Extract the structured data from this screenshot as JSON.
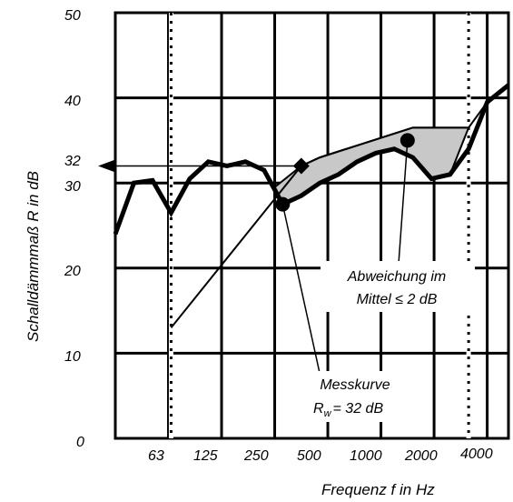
{
  "chart_data": {
    "type": "line",
    "xlabel": "Frequenz f in Hz",
    "ylabel": "Schalldämmmaß R in dB",
    "ylim": [
      0,
      50
    ],
    "y_ticks": [
      "0",
      "10",
      "20",
      "30",
      "40",
      "50"
    ],
    "y_marker_label": "32",
    "y_marker_value": 32,
    "x_ticks": [
      "63",
      "125",
      "250",
      "500",
      "1000",
      "2000",
      "4000"
    ],
    "x_tick_positions": [
      1,
      2,
      3,
      4,
      5,
      6,
      7
    ],
    "xlim": [
      0,
      7.4
    ],
    "series": [
      {
        "values": [
          {
            "x": 0.0,
            "y": 24
          },
          {
            "x": 0.35,
            "y": 30
          },
          {
            "x": 0.7,
            "y": 30.3
          },
          {
            "x": 1.05,
            "y": 26.5
          },
          {
            "x": 1.4,
            "y": 30.5
          },
          {
            "x": 1.75,
            "y": 32.5
          },
          {
            "x": 2.1,
            "y": 32
          },
          {
            "x": 2.45,
            "y": 32.5
          },
          {
            "x": 2.8,
            "y": 31.5
          },
          {
            "x": 3.15,
            "y": 27.5
          },
          {
            "x": 3.5,
            "y": 28.5
          },
          {
            "x": 3.85,
            "y": 30
          },
          {
            "x": 4.2,
            "y": 31
          },
          {
            "x": 4.55,
            "y": 32.5
          },
          {
            "x": 4.9,
            "y": 33.5
          },
          {
            "x": 5.25,
            "y": 34
          },
          {
            "x": 5.6,
            "y": 33
          },
          {
            "x": 5.95,
            "y": 30.5
          },
          {
            "x": 6.3,
            "y": 31
          },
          {
            "x": 6.65,
            "y": 34
          },
          {
            "x": 7.0,
            "y": 39.5
          },
          {
            "x": 7.4,
            "y": 41.5
          }
        ]
      }
    ],
    "reference_curve": [
      {
        "x": 1.05,
        "y": 13
      },
      {
        "x": 3.5,
        "y": 32
      },
      {
        "x": 3.85,
        "y": 33
      },
      {
        "x": 5.6,
        "y": 36.5
      },
      {
        "x": 6.65,
        "y": 36.5
      },
      {
        "x": 7.0,
        "y": 39.5
      }
    ],
    "shaded_regions": [
      [
        {
          "x": 3.0,
          "y": 29.5
        },
        {
          "x": 3.5,
          "y": 32
        },
        {
          "x": 3.85,
          "y": 33
        },
        {
          "x": 5.6,
          "y": 36.5
        },
        {
          "x": 6.65,
          "y": 36.5
        },
        {
          "x": 6.3,
          "y": 31
        },
        {
          "x": 5.95,
          "y": 30.5
        },
        {
          "x": 5.6,
          "y": 33
        },
        {
          "x": 5.25,
          "y": 34
        },
        {
          "x": 4.9,
          "y": 33.5
        },
        {
          "x": 4.55,
          "y": 32.5
        },
        {
          "x": 4.2,
          "y": 31
        },
        {
          "x": 3.85,
          "y": 30
        },
        {
          "x": 3.5,
          "y": 28.5
        },
        {
          "x": 3.15,
          "y": 27.5
        }
      ]
    ],
    "dotted_verticals_x": [
      1.05,
      6.65
    ],
    "diamond_marker": {
      "x": 3.5,
      "y": 32
    },
    "points": [
      {
        "x": 3.15,
        "y": 27.5
      },
      {
        "x": 5.5,
        "y": 35
      }
    ],
    "annotations": [
      {
        "lines": [
          "Abweichung im",
          "Mittel ≤ 2 dB"
        ]
      },
      {
        "lines": [
          "Messkurve",
          "R",
          "w",
          "= 32 dB"
        ]
      }
    ],
    "grid": true,
    "colors": {
      "line": "#000000",
      "shade": "#c8c8c8",
      "background": "#ffffff"
    }
  }
}
